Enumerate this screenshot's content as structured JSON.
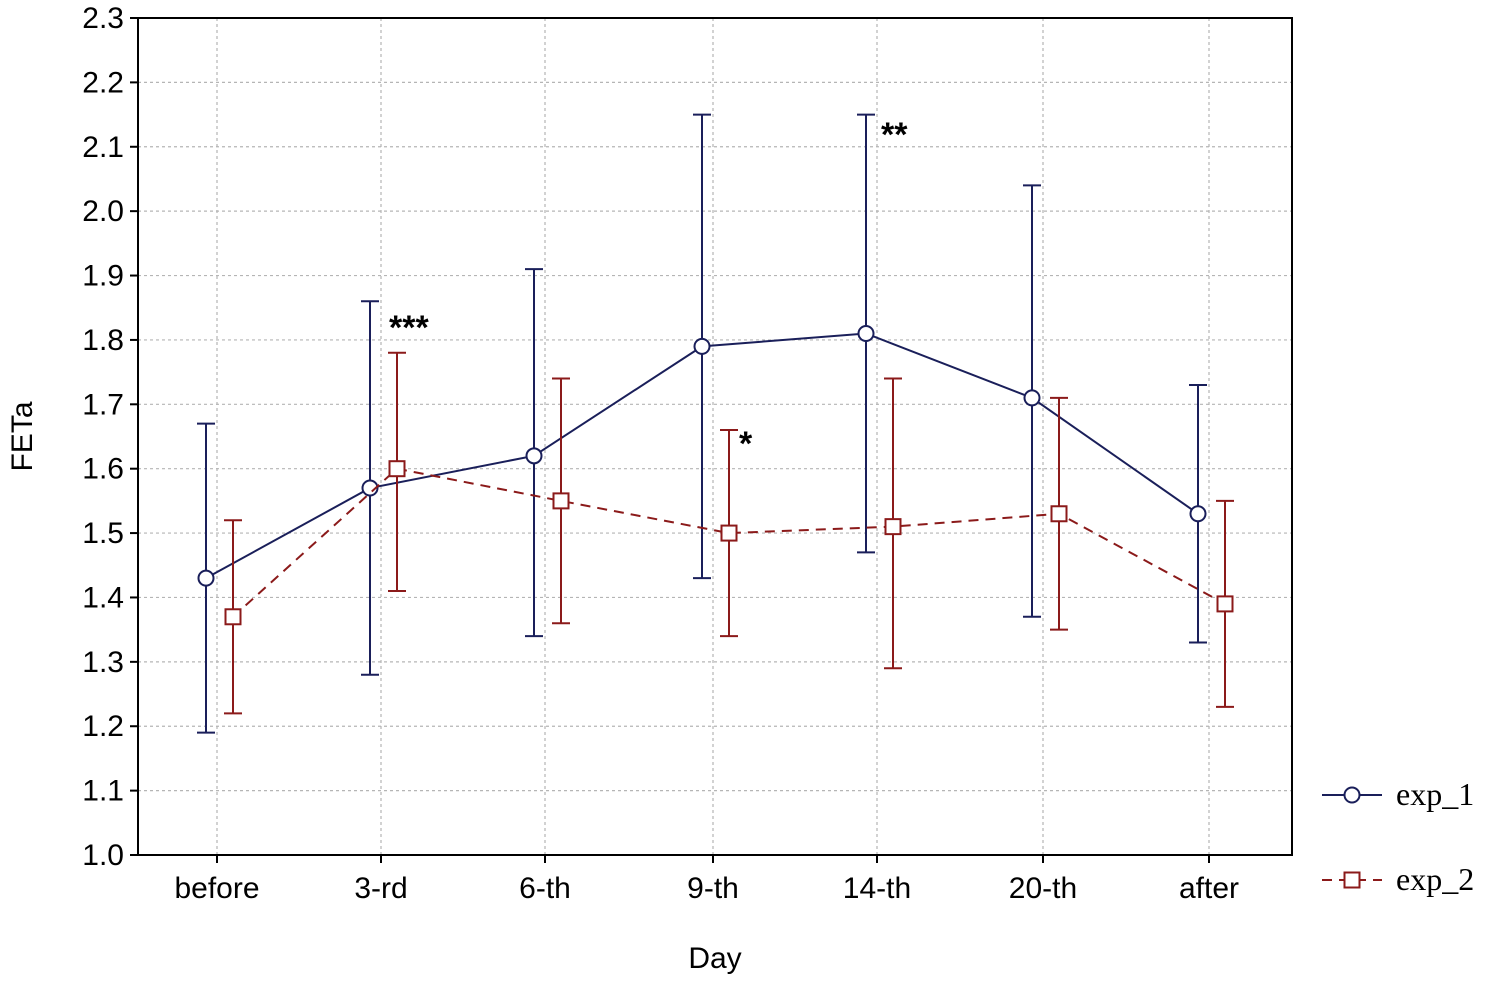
{
  "chart_data": {
    "type": "line",
    "title": "",
    "xlabel": "Day",
    "ylabel": "FETa",
    "categories": [
      "before",
      "3-rd",
      "6-th",
      "9-th",
      "14-th",
      "20-th",
      "after"
    ],
    "ylim": [
      1.0,
      2.3
    ],
    "yticks": [
      "1.0",
      "1.1",
      "1.2",
      "1.3",
      "1.4",
      "1.5",
      "1.6",
      "1.7",
      "1.8",
      "1.9",
      "2.0",
      "2.1",
      "2.2",
      "2.3"
    ],
    "grid": true,
    "legend_position": "right",
    "series": [
      {
        "name": "exp_1",
        "color": "#1a1f5a",
        "marker": "circle",
        "line_style": "solid",
        "values": [
          1.43,
          1.57,
          1.62,
          1.79,
          1.81,
          1.71,
          1.53
        ],
        "error_low": [
          1.19,
          1.28,
          1.34,
          1.43,
          1.47,
          1.37,
          1.33
        ],
        "error_high": [
          1.67,
          1.86,
          1.91,
          2.15,
          2.15,
          2.04,
          1.73
        ]
      },
      {
        "name": "exp_2",
        "color": "#8b1a1a",
        "marker": "square",
        "line_style": "dashed",
        "values": [
          1.37,
          1.6,
          1.55,
          1.5,
          1.51,
          1.53,
          1.39
        ],
        "error_low": [
          1.22,
          1.41,
          1.36,
          1.34,
          1.29,
          1.35,
          1.23
        ],
        "error_high": [
          1.52,
          1.78,
          1.74,
          1.66,
          1.74,
          1.71,
          1.55
        ]
      }
    ],
    "annotations": [
      {
        "text": "***",
        "category": "3-rd",
        "y": 1.82
      },
      {
        "text": "*",
        "category": "9-th",
        "y": 1.64
      },
      {
        "text": "**",
        "category": "14-th",
        "y": 2.12
      }
    ]
  }
}
